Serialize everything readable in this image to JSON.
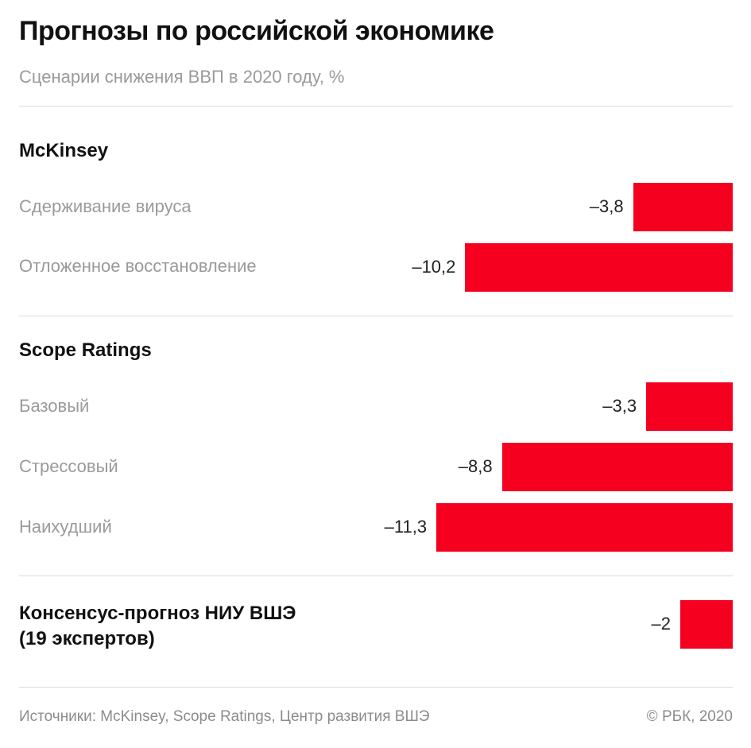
{
  "title": "Прогнозы по российской экономике",
  "subtitle": "Сценарии снижения ВВП в 2020 году, %",
  "chart_data": {
    "type": "bar",
    "orientation": "horizontal",
    "color": "#f5001e",
    "groups": [
      {
        "name": "McKinsey",
        "items": [
          {
            "label": "Сдерживание вируса",
            "value": -3.8,
            "display": "–3,8"
          },
          {
            "label": "Отложенное восстановление",
            "value": -10.2,
            "display": "–10,2"
          }
        ]
      },
      {
        "name": "Scope Ratings",
        "items": [
          {
            "label": "Базовый",
            "value": -3.3,
            "display": "–3,3"
          },
          {
            "label": "Стрессовый",
            "value": -8.8,
            "display": "–8,8"
          },
          {
            "label": "Наихудший",
            "value": -11.3,
            "display": "–11,3"
          }
        ]
      },
      {
        "name": "Консенсус-прогноз НИУ ВШЭ (19 экспертов)",
        "name_lines": [
          "Консенсус-прогноз НИУ ВШЭ",
          "(19 экспертов)"
        ],
        "items": [
          {
            "label": "",
            "value": -2,
            "display": "–2"
          }
        ]
      }
    ]
  },
  "footer": {
    "sources": "Источники: McKinsey, Scope Ratings, Центр развития ВШЭ",
    "copyright": "© РБК, 2020"
  }
}
